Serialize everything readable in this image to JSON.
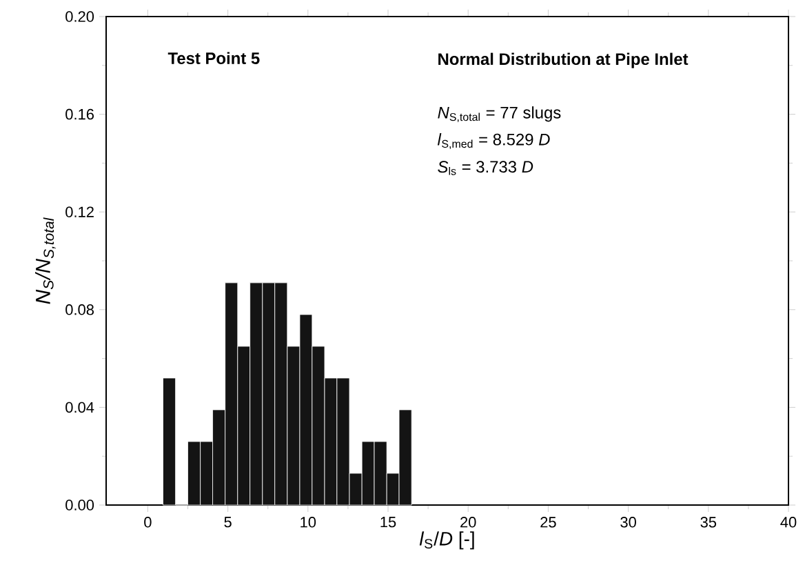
{
  "chart_data": {
    "type": "histogram",
    "xlabel": "*l*$_{S}$/*D* [-]",
    "ylabel": "N$_{S}$/N$_{S,total}$",
    "bins": [
      0.95,
      1.73,
      2.5,
      3.28,
      4.05,
      4.83,
      5.61,
      6.38,
      7.16,
      7.93,
      8.71,
      9.49,
      10.26,
      11.04,
      11.81,
      12.59,
      13.37,
      14.14,
      14.92,
      15.69,
      16.47
    ],
    "values": [
      0.052,
      0,
      0.026,
      0.026,
      0.039,
      0.091,
      0.065,
      0.091,
      0.091,
      0.091,
      0.065,
      0.078,
      0.065,
      0.052,
      0.052,
      0.013,
      0.026,
      0.026,
      0.013,
      0.039
    ],
    "color": "#141414",
    "xlim": [
      -2.6,
      40
    ],
    "ylim": [
      0,
      0.2
    ],
    "xticks": [
      0,
      5,
      10,
      15,
      20,
      25,
      30,
      35,
      40
    ],
    "yticks": [
      {
        "value": 0,
        "label": "0.00"
      },
      {
        "value": 0.04,
        "label": "0.04"
      },
      {
        "value": 0.08,
        "label": "0.08"
      },
      {
        "value": 0.12,
        "label": "0.12"
      },
      {
        "value": 0.16,
        "label": "0.16"
      },
      {
        "value": 0.2,
        "label": "0.20"
      }
    ],
    "annotations": [
      "**Test Point 5**",
      "**Normal Distribution at Pipe Inlet**",
      "*N*$_{S,total}$ = 77 slugs",
      "*l*$_{S,med}$ = 8.529 *D*",
      "*S*$_{ls}$ = 3.733 *D*"
    ]
  }
}
